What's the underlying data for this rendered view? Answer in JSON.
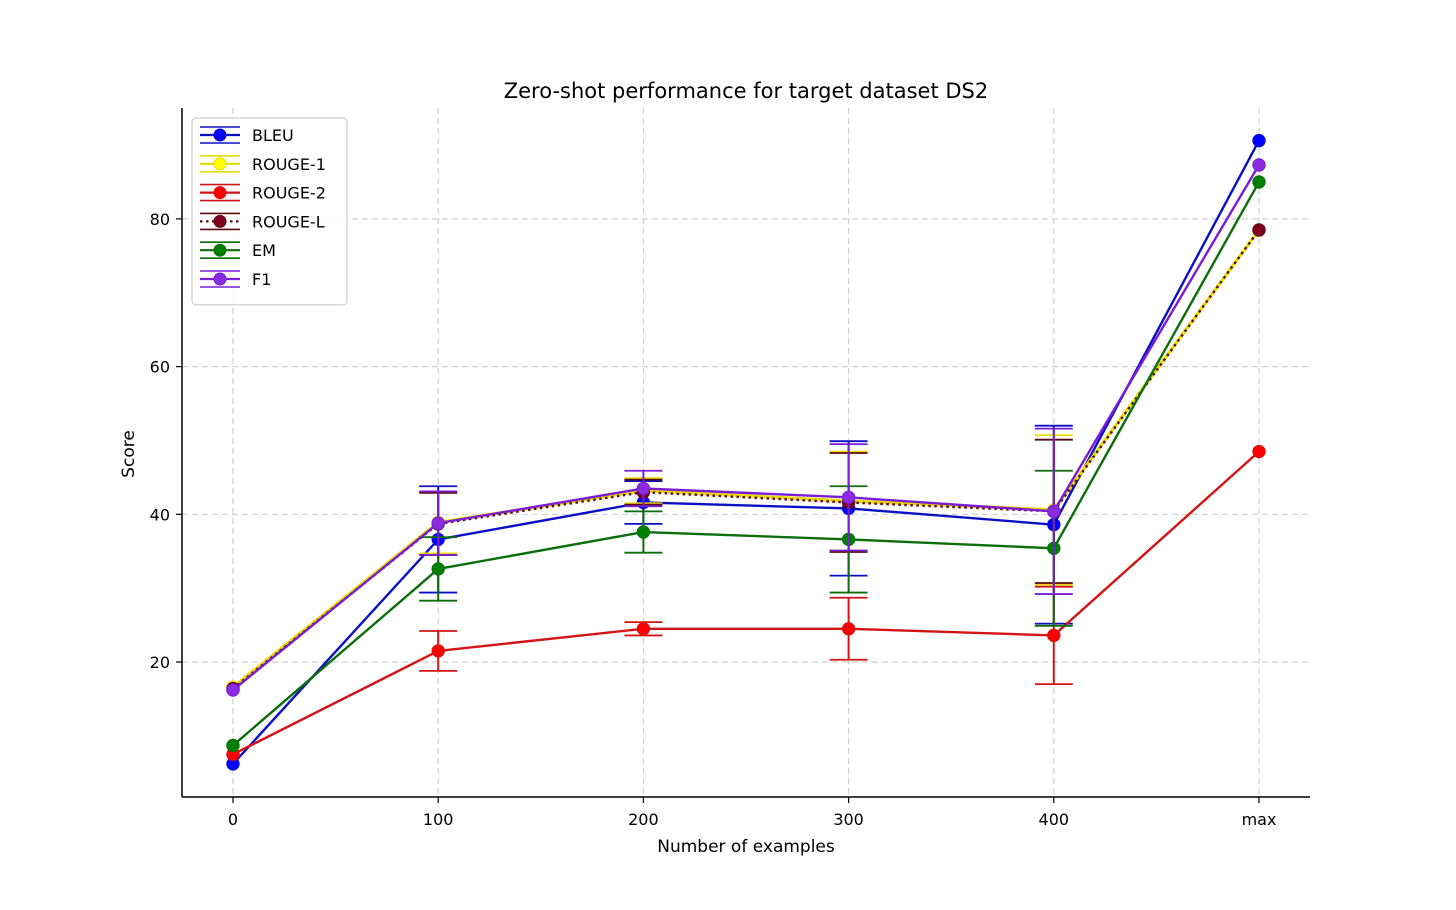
{
  "chart_data": {
    "type": "line",
    "title": "Zero-shot performance for target dataset DS2",
    "xlabel": "Number of examples",
    "ylabel": "Score",
    "categories": [
      "0",
      "100",
      "200",
      "300",
      "400",
      "max"
    ],
    "ylim": [
      2,
      95
    ],
    "yticks": [
      20,
      40,
      60,
      80
    ],
    "grid": true,
    "legend_position": "top-left",
    "series": [
      {
        "name": "BLEU",
        "color": "#0000ff",
        "line_color": "#0a10c4",
        "style": "solid",
        "values": [
          6.2,
          36.6,
          41.6,
          40.8,
          38.6,
          90.6
        ],
        "errors": [
          null,
          7.2,
          2.9,
          9.1,
          13.4,
          null
        ]
      },
      {
        "name": "ROUGE-1",
        "color": "#ffff00",
        "line_color": "#e8dc00",
        "style": "solid",
        "values": [
          16.6,
          38.9,
          43.2,
          41.8,
          40.6,
          78.5
        ],
        "errors": [
          null,
          4.2,
          1.7,
          6.7,
          10.1,
          null
        ]
      },
      {
        "name": "ROUGE-2",
        "color": "#ff0000",
        "line_color": "#d41414",
        "style": "solid",
        "values": [
          7.5,
          21.5,
          24.5,
          24.5,
          23.6,
          48.5
        ],
        "errors": [
          null,
          2.7,
          0.9,
          4.2,
          6.6,
          null
        ]
      },
      {
        "name": "ROUGE-L",
        "color": "#800020",
        "line_color": "#5a0a14",
        "style": "dotted",
        "values": [
          16.4,
          38.7,
          43.0,
          41.6,
          40.4,
          78.5
        ],
        "errors": [
          null,
          4.2,
          1.7,
          6.7,
          9.7,
          null
        ]
      },
      {
        "name": "EM",
        "color": "#008000",
        "line_color": "#0b6e0b",
        "style": "solid",
        "values": [
          8.7,
          32.6,
          37.6,
          36.6,
          35.4,
          85.0
        ],
        "errors": [
          null,
          4.3,
          2.8,
          7.2,
          10.5,
          null
        ]
      },
      {
        "name": "F1",
        "color": "#8a2be2",
        "line_color": "#7a1cd6",
        "style": "solid",
        "values": [
          16.2,
          38.8,
          43.5,
          42.3,
          40.4,
          87.3
        ],
        "errors": [
          null,
          4.3,
          2.4,
          7.2,
          11.2,
          null
        ]
      }
    ]
  }
}
